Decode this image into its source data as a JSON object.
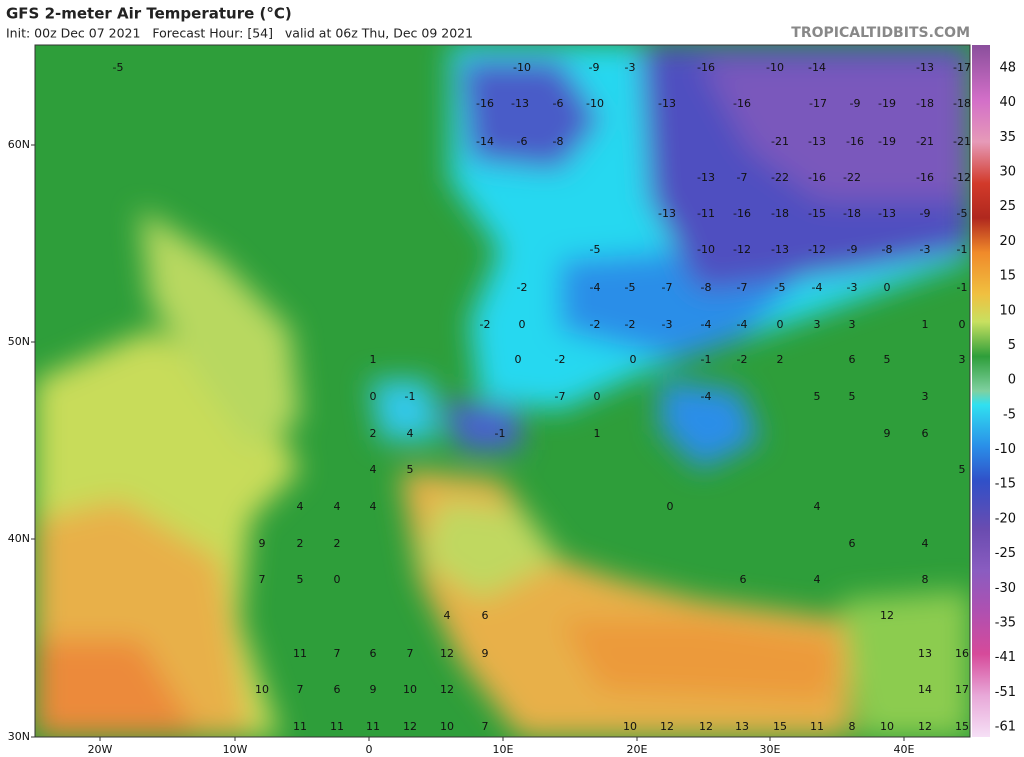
{
  "header": {
    "title": "GFS 2-meter Air Temperature (°C)",
    "subtitle": "Init: 00z Dec 07 2021   Forecast Hour: [54]   valid at 06z Thu, Dec 09 2021",
    "source": "TROPICALTIDBITS.COM"
  },
  "colorbar": {
    "ticks": [
      48,
      40,
      35,
      30,
      25,
      20,
      15,
      10,
      5,
      0,
      -5,
      -10,
      -15,
      -20,
      -25,
      -30,
      -35,
      -41,
      -51,
      -61
    ]
  },
  "axes": {
    "latitude_labels": [
      "60N",
      "50N",
      "40N",
      "30N"
    ],
    "longitude_labels": [
      "20W",
      "10W",
      "0",
      "10E",
      "20E",
      "30E",
      "40E"
    ]
  },
  "map_labels": [
    [
      -5,
      -10,
      -9,
      -3,
      -16,
      -10,
      -14,
      -13,
      -17
    ],
    [
      -16,
      -13,
      -6,
      -10,
      -13,
      -16,
      -17,
      -9,
      -19,
      -18,
      -18
    ],
    [
      -14,
      -6,
      -8,
      -21,
      -13,
      -16,
      -19,
      -21,
      -21
    ],
    [
      -13,
      -7,
      -22,
      -16,
      -22,
      -16,
      -12
    ],
    [
      -13,
      -11,
      -16,
      -18,
      -15,
      -18,
      -13,
      -9,
      -5
    ],
    [
      -5,
      -10,
      -12,
      -13,
      -12,
      -9,
      -8,
      -3,
      -1
    ],
    [
      -2,
      -4,
      -5,
      -7,
      -8,
      -7,
      -5,
      -4,
      -3,
      0,
      -1
    ],
    [
      -2,
      0,
      -2,
      -2,
      -3,
      -4,
      -4,
      0,
      3,
      3,
      1,
      0
    ],
    [
      1,
      0,
      -2,
      0,
      -1,
      -2,
      2,
      6,
      5,
      3
    ],
    [
      0,
      -1,
      -7,
      0,
      -4,
      5,
      5,
      3
    ],
    [
      2,
      4,
      -1,
      1,
      9,
      6
    ],
    [
      4,
      5,
      5
    ],
    [
      4,
      4,
      4,
      0,
      4
    ],
    [
      9,
      2,
      2,
      6,
      4
    ],
    [
      7,
      5,
      0,
      6,
      4,
      8
    ],
    [
      4,
      6,
      12
    ],
    [
      11,
      7,
      6,
      7,
      12,
      9,
      13,
      16
    ],
    [
      10,
      7,
      6,
      9,
      10,
      12,
      14,
      17
    ],
    [
      11,
      11,
      11,
      12,
      10,
      7,
      10,
      12,
      12,
      13,
      15,
      11,
      8,
      10,
      12,
      15
    ]
  ]
}
